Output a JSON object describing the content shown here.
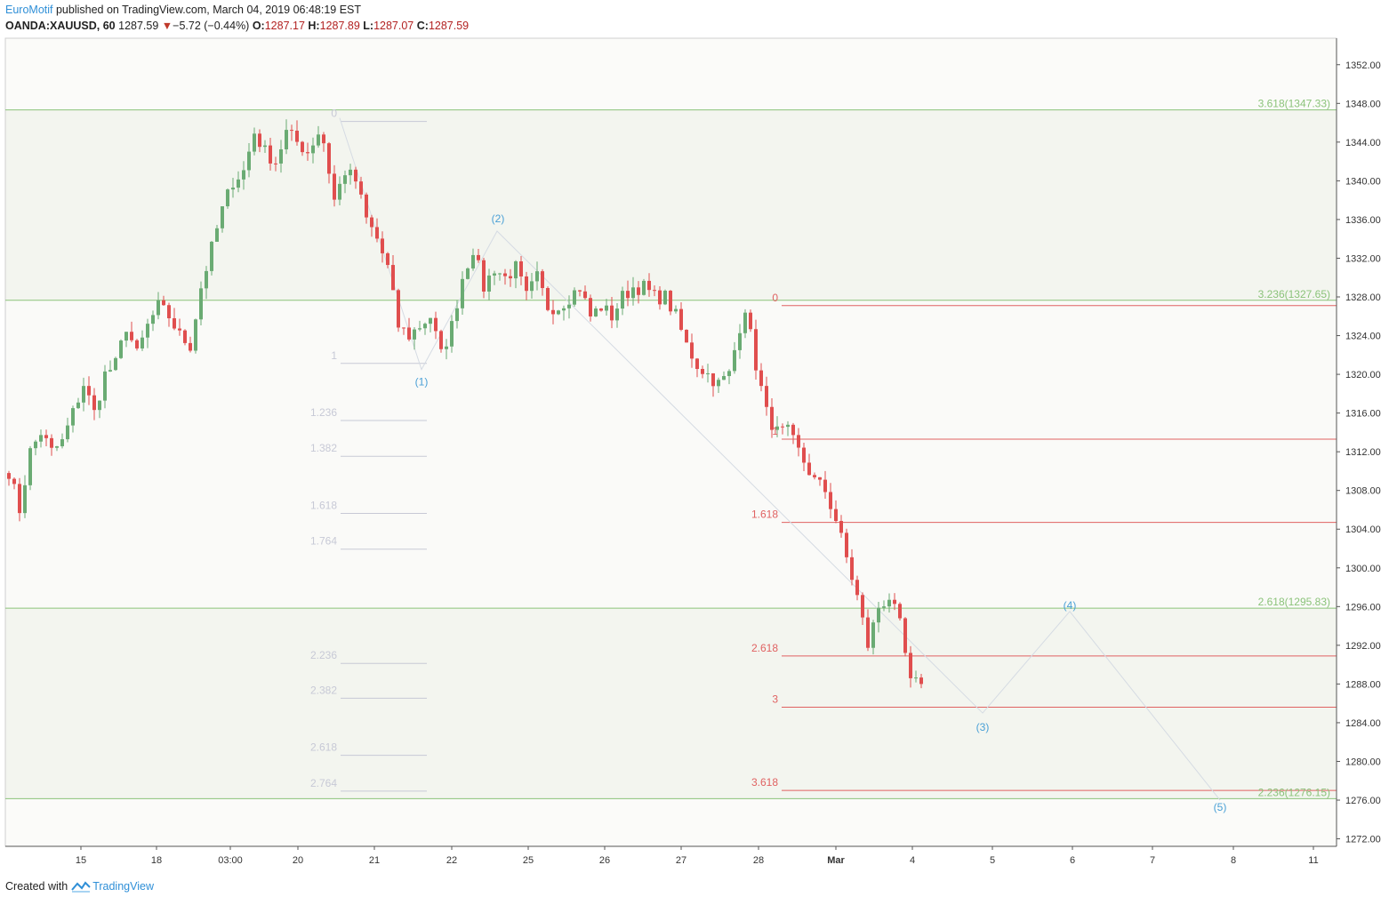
{
  "header": {
    "brand": "EuroMotif",
    "published": " published on TradingView.com, March 04, 2019 06:48:19 EST",
    "symbol": "OANDA:XAUUSD, 60",
    "last": "1287.59",
    "arrow": "▼",
    "change": "−5.72 (−0.44%)",
    "o_label": "O:",
    "o": "1287.17",
    "h_label": "H:",
    "h": "1287.89",
    "l_label": "L:",
    "l": "1287.07",
    "c_label": "C:",
    "c": "1287.59"
  },
  "footer": {
    "created_with": "Created with",
    "brand": "TradingView"
  },
  "colors": {
    "up": "#6aab73",
    "down": "#e04e4e",
    "green_line": "#8bc37a",
    "red_line": "#e06262",
    "grey_fib": "#c7c9d6",
    "wave": "#4aa0d6",
    "zone": "#f3f5ef"
  },
  "chart_data": {
    "type": "candlestick",
    "ylim": [
      1270,
      1354
    ],
    "y_ticks": [
      "1352.00",
      "1348.00",
      "1344.00",
      "1340.00",
      "1336.00",
      "1332.00",
      "1328.00",
      "1324.00",
      "1320.00",
      "1316.00",
      "1312.00",
      "1308.00",
      "1304.00",
      "1300.00",
      "1296.00",
      "1292.00",
      "1288.00",
      "1284.00",
      "1280.00",
      "1276.00",
      "1272.00"
    ],
    "x_ticks": [
      "15",
      "18",
      "03:00",
      "20",
      "21",
      "22",
      "25",
      "26",
      "27",
      "28",
      "Mar",
      "4",
      "5",
      "6",
      "7",
      "8",
      "11"
    ],
    "close_path": [
      [
        0,
        1310
      ],
      [
        2,
        1306
      ],
      [
        4,
        1312
      ],
      [
        6,
        1314
      ],
      [
        8,
        1312
      ],
      [
        10,
        1313
      ],
      [
        12,
        1316
      ],
      [
        14,
        1319
      ],
      [
        16,
        1316
      ],
      [
        18,
        1320
      ],
      [
        20,
        1321
      ],
      [
        22,
        1325
      ],
      [
        24,
        1322
      ],
      [
        26,
        1325
      ],
      [
        28,
        1327
      ],
      [
        30,
        1326
      ],
      [
        32,
        1324
      ],
      [
        34,
        1323
      ],
      [
        36,
        1329
      ],
      [
        38,
        1333
      ],
      [
        40,
        1337
      ],
      [
        42,
        1340
      ],
      [
        44,
        1341
      ],
      [
        46,
        1345
      ],
      [
        48,
        1343
      ],
      [
        50,
        1342
      ],
      [
        52,
        1345
      ],
      [
        54,
        1344
      ],
      [
        56,
        1343
      ],
      [
        58,
        1345
      ],
      [
        59,
        1344
      ],
      [
        61,
        1338
      ],
      [
        63,
        1341
      ],
      [
        65,
        1340
      ],
      [
        67,
        1336
      ],
      [
        69,
        1334
      ],
      [
        71,
        1331
      ],
      [
        73,
        1325
      ],
      [
        75,
        1324
      ],
      [
        77,
        1325
      ],
      [
        79,
        1326
      ],
      [
        81,
        1322
      ],
      [
        83,
        1325
      ],
      [
        85,
        1330
      ],
      [
        87,
        1333
      ],
      [
        89,
        1329
      ],
      [
        91,
        1331
      ],
      [
        93,
        1330
      ],
      [
        95,
        1331
      ],
      [
        97,
        1328
      ],
      [
        99,
        1330
      ],
      [
        101,
        1327
      ],
      [
        103,
        1327
      ],
      [
        105,
        1328
      ],
      [
        107,
        1329
      ],
      [
        109,
        1326
      ],
      [
        111,
        1327
      ],
      [
        113,
        1326
      ],
      [
        115,
        1328
      ],
      [
        117,
        1329
      ],
      [
        119,
        1329
      ],
      [
        121,
        1328
      ],
      [
        123,
        1328
      ],
      [
        125,
        1326
      ],
      [
        127,
        1323
      ],
      [
        129,
        1321
      ],
      [
        131,
        1320
      ],
      [
        133,
        1319
      ],
      [
        135,
        1320
      ],
      [
        137,
        1325
      ],
      [
        138,
        1327
      ],
      [
        140,
        1321
      ],
      [
        142,
        1316
      ],
      [
        144,
        1314
      ],
      [
        146,
        1314
      ],
      [
        147,
        1313
      ],
      [
        149,
        1311
      ],
      [
        151,
        1309
      ],
      [
        153,
        1308
      ],
      [
        155,
        1305
      ],
      [
        157,
        1301
      ],
      [
        159,
        1297
      ],
      [
        161,
        1292
      ],
      [
        163,
        1296
      ],
      [
        165,
        1297
      ],
      [
        167,
        1294
      ],
      [
        169,
        1288
      ],
      [
        171,
        1288
      ]
    ],
    "annotations": {
      "green_levels": [
        {
          "label": "3.618(1347.33)",
          "value": 1347.33
        },
        {
          "label": "3.236(1327.65)",
          "value": 1327.65
        },
        {
          "label": "2.618(1295.83)",
          "value": 1295.83
        },
        {
          "label": "2.236(1276.15)",
          "value": 1276.15
        }
      ],
      "grey_fib": [
        {
          "label": "0",
          "value": 1346.5
        },
        {
          "label": "1",
          "value": 1321.5
        },
        {
          "label": "1.236",
          "value": 1315.6
        },
        {
          "label": "1.382",
          "value": 1311.9
        },
        {
          "label": "1.618",
          "value": 1306.0
        },
        {
          "label": "1.764",
          "value": 1302.3
        },
        {
          "label": "2.236",
          "value": 1290.5
        },
        {
          "label": "2.382",
          "value": 1286.9
        },
        {
          "label": "2.618",
          "value": 1281.0
        },
        {
          "label": "2.764",
          "value": 1277.3
        }
      ],
      "red_fib": [
        {
          "label": "0",
          "value": 1327.1
        },
        {
          "label": "1",
          "value": 1313.3
        },
        {
          "label": "1.618",
          "value": 1304.7
        },
        {
          "label": "2.618",
          "value": 1290.9
        },
        {
          "label": "3",
          "value": 1285.6
        },
        {
          "label": "3.618",
          "value": 1277.0
        }
      ],
      "waves": [
        {
          "label": "(1)",
          "value": 1320.5
        },
        {
          "label": "(2)",
          "value": 1334.8
        },
        {
          "label": "(3)",
          "value": 1285.0
        },
        {
          "label": "(4)",
          "value": 1295.5
        },
        {
          "label": "(5)",
          "value": 1276.0
        }
      ]
    }
  }
}
